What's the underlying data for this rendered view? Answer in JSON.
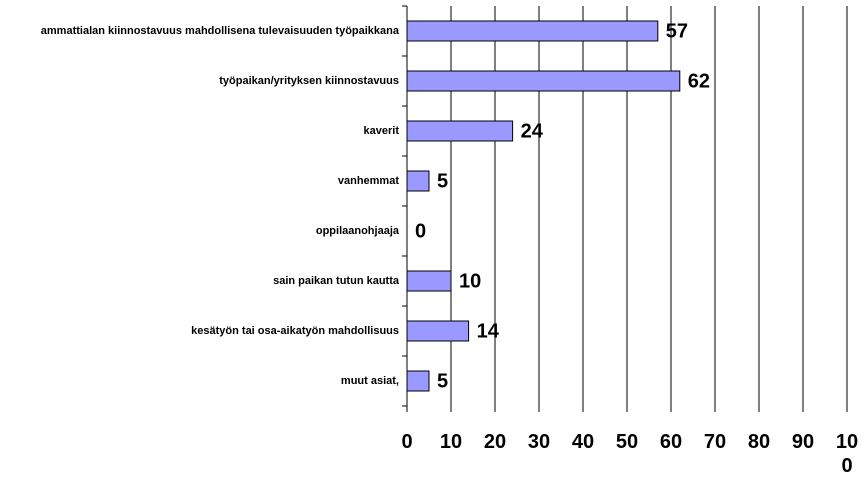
{
  "chart_data": {
    "type": "barh",
    "categories": [
      "ammattialan kiinnostavuus mahdollisena tulevaisuuden työpaikkana",
      "työpaikan/yrityksen kiinnostavuus",
      "kaverit",
      "vanhemmat",
      "oppilaanohjaaja",
      "sain paikan tutun kautta",
      "kesätyön tai osa-aikatyön mahdollisuus",
      "muut asiat,"
    ],
    "values": [
      57,
      62,
      24,
      5,
      0,
      10,
      14,
      5
    ],
    "color": "#9999ff",
    "xlim": [
      0,
      100
    ],
    "xticks": [
      0,
      10,
      20,
      30,
      40,
      50,
      60,
      70,
      80,
      90,
      100
    ],
    "grid": true
  }
}
